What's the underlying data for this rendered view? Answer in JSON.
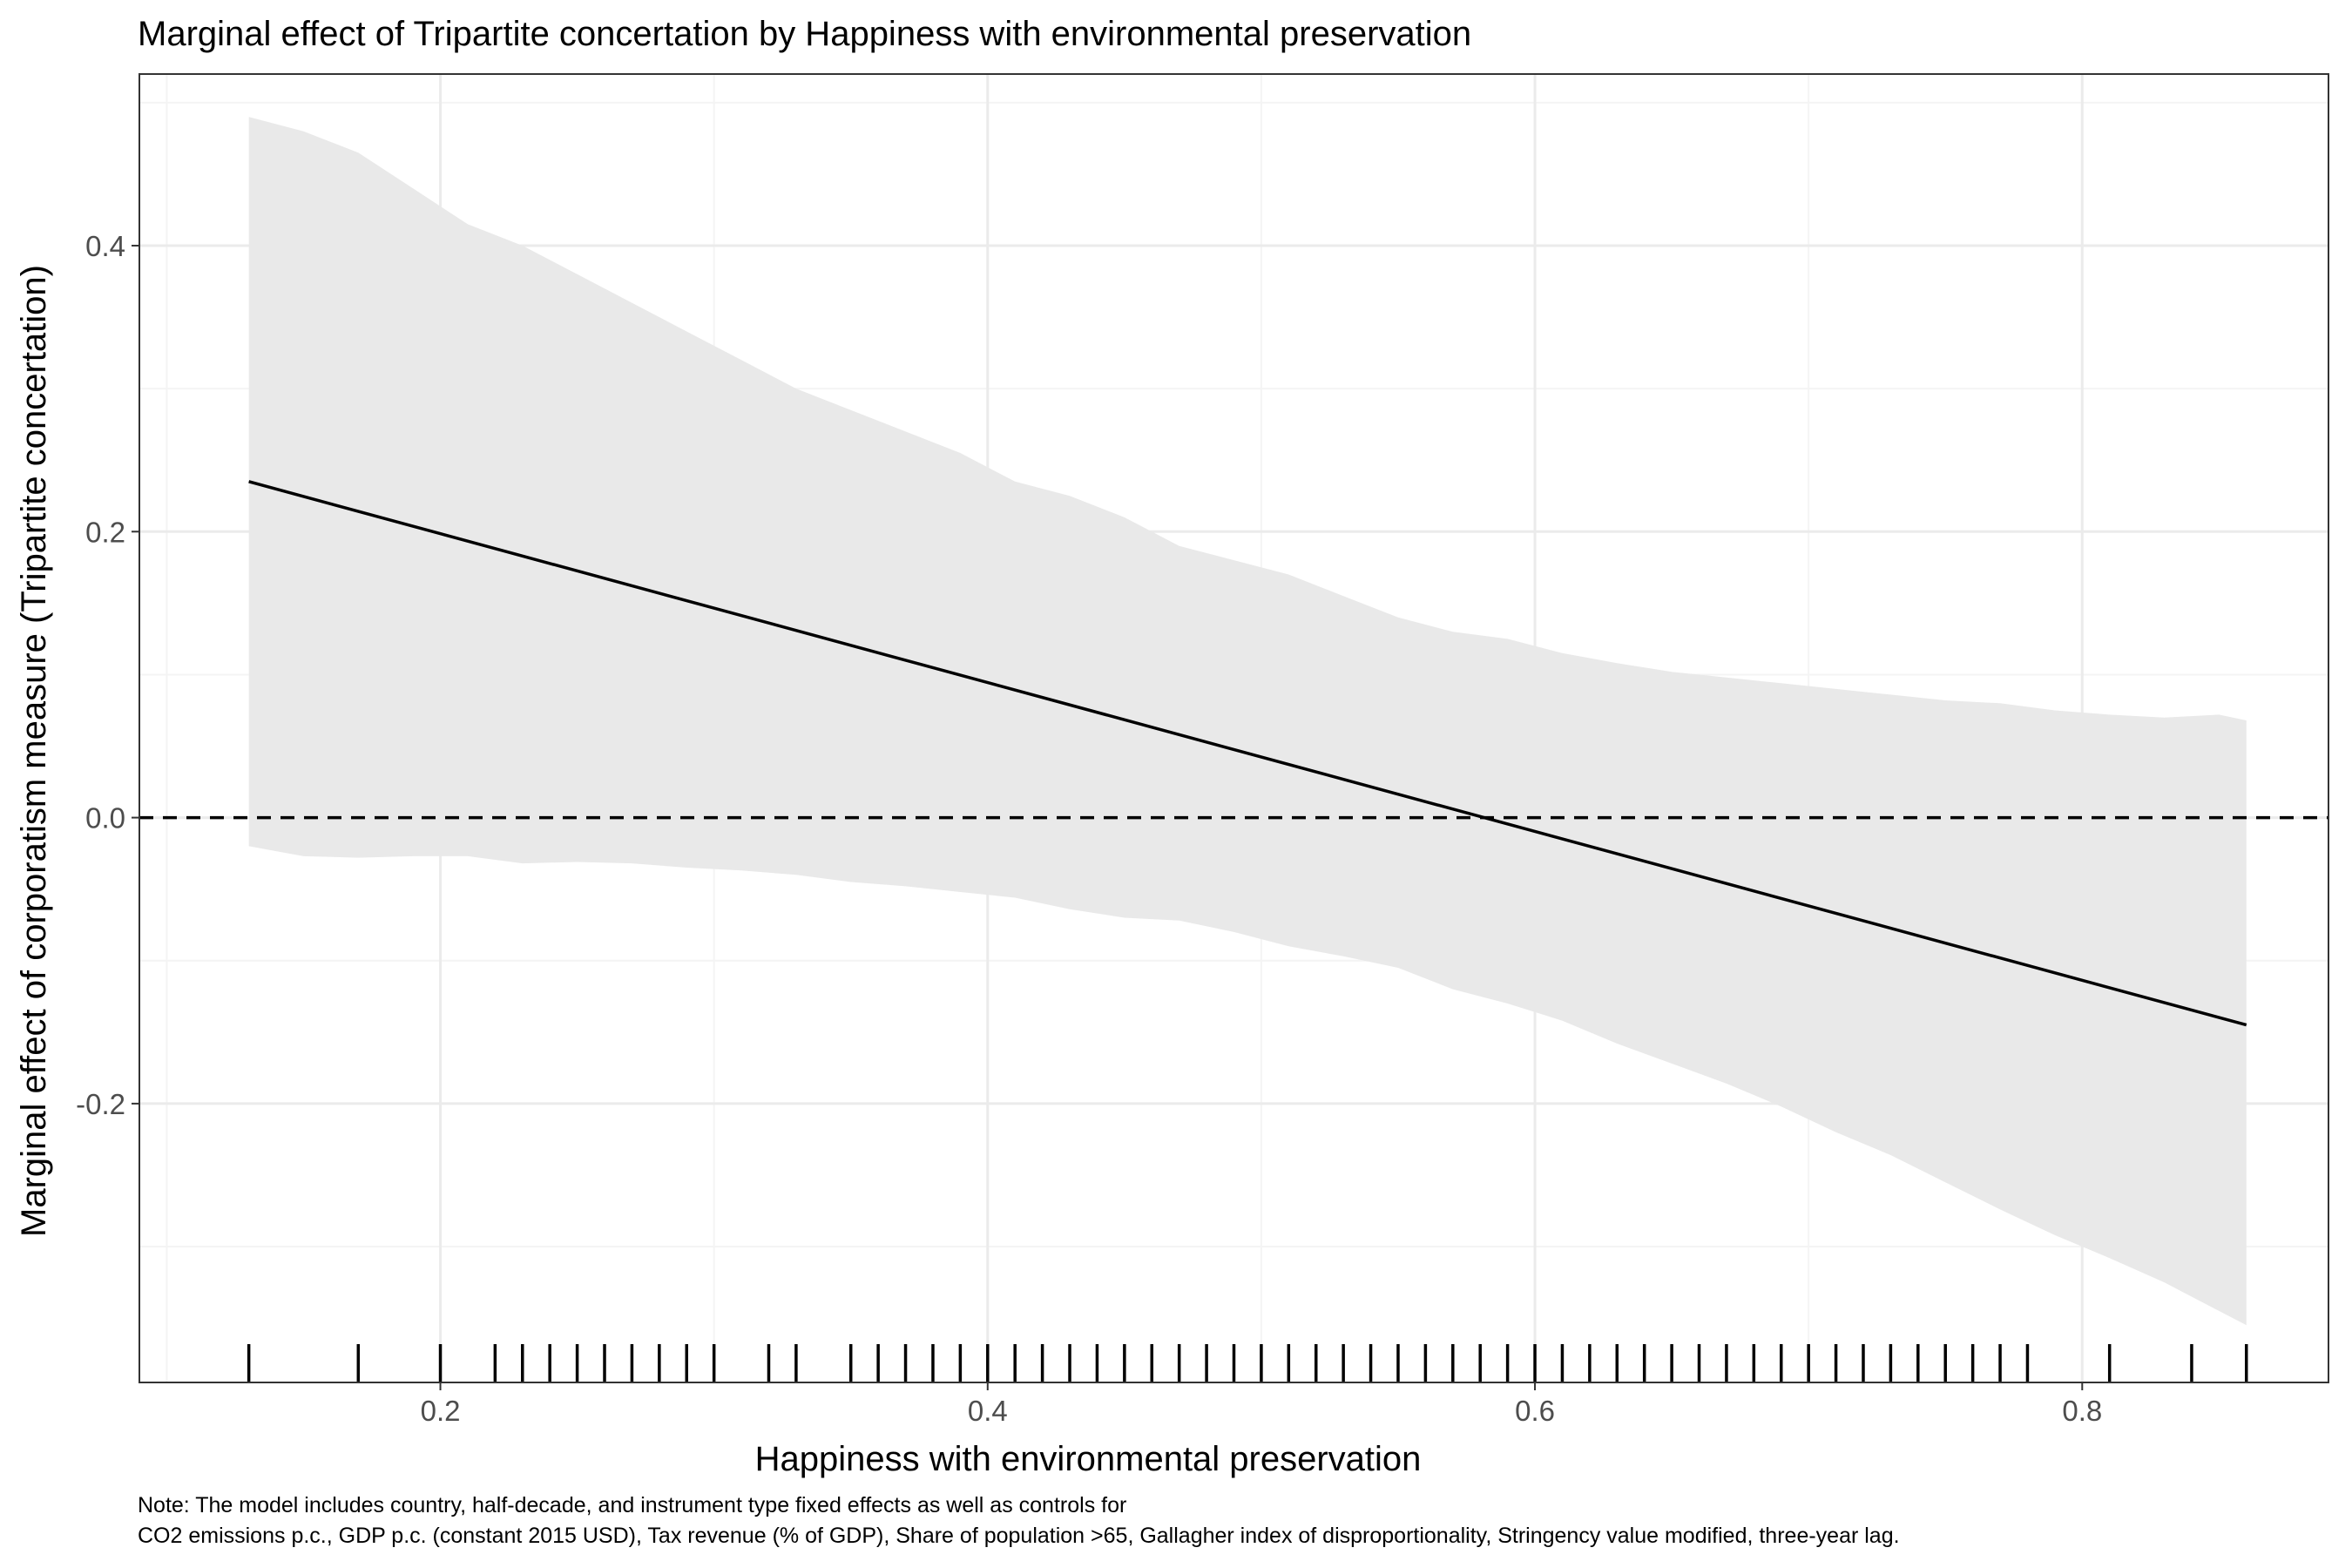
{
  "chart_data": {
    "type": "line",
    "title": "Marginal effect of Tripartite concertation by Happiness with environmental preservation",
    "xlabel": "Happiness with environmental preservation",
    "ylabel": "Marginal effect of corporatism measure (Tripartite concertation)",
    "xlim": [
      0.09,
      0.89
    ],
    "ylim": [
      -0.395,
      0.52
    ],
    "x_ticks": [
      {
        "value": 0.2,
        "label": "0.2"
      },
      {
        "value": 0.4,
        "label": "0.4"
      },
      {
        "value": 0.6,
        "label": "0.6"
      },
      {
        "value": 0.8,
        "label": "0.8"
      }
    ],
    "y_ticks": [
      {
        "value": -0.2,
        "label": "-0.2"
      },
      {
        "value": 0.0,
        "label": "0.0"
      },
      {
        "value": 0.2,
        "label": "0.2"
      },
      {
        "value": 0.4,
        "label": "0.4"
      }
    ],
    "grid": true,
    "reference_line": {
      "y": 0,
      "style": "dashed"
    },
    "line": {
      "name": "Marginal effect",
      "x": [
        0.13,
        0.86
      ],
      "y": [
        0.235,
        -0.145
      ]
    },
    "ribbon": {
      "name": "Confidence interval",
      "x": [
        0.13,
        0.15,
        0.17,
        0.19,
        0.21,
        0.23,
        0.25,
        0.27,
        0.29,
        0.31,
        0.33,
        0.35,
        0.37,
        0.39,
        0.41,
        0.43,
        0.45,
        0.47,
        0.49,
        0.51,
        0.53,
        0.55,
        0.57,
        0.59,
        0.61,
        0.63,
        0.65,
        0.67,
        0.69,
        0.71,
        0.73,
        0.75,
        0.77,
        0.79,
        0.81,
        0.83,
        0.85,
        0.86
      ],
      "upper": [
        0.49,
        0.48,
        0.465,
        0.44,
        0.415,
        0.4,
        0.38,
        0.36,
        0.34,
        0.32,
        0.3,
        0.285,
        0.27,
        0.255,
        0.235,
        0.225,
        0.21,
        0.19,
        0.18,
        0.17,
        0.155,
        0.14,
        0.13,
        0.125,
        0.115,
        0.108,
        0.102,
        0.098,
        0.094,
        0.09,
        0.086,
        0.082,
        0.08,
        0.075,
        0.072,
        0.07,
        0.072,
        0.068
      ],
      "lower": [
        -0.02,
        -0.027,
        -0.028,
        -0.027,
        -0.027,
        -0.032,
        -0.031,
        -0.032,
        -0.035,
        -0.037,
        -0.04,
        -0.045,
        -0.048,
        -0.052,
        -0.056,
        -0.064,
        -0.07,
        -0.072,
        -0.08,
        -0.09,
        -0.097,
        -0.105,
        -0.12,
        -0.13,
        -0.142,
        -0.158,
        -0.172,
        -0.186,
        -0.202,
        -0.22,
        -0.236,
        -0.255,
        -0.274,
        -0.292,
        -0.308,
        -0.325,
        -0.345,
        -0.355
      ]
    },
    "rug_x": [
      0.13,
      0.17,
      0.2,
      0.22,
      0.23,
      0.24,
      0.25,
      0.26,
      0.27,
      0.28,
      0.29,
      0.3,
      0.32,
      0.33,
      0.35,
      0.36,
      0.37,
      0.38,
      0.39,
      0.4,
      0.41,
      0.42,
      0.43,
      0.44,
      0.45,
      0.46,
      0.47,
      0.48,
      0.49,
      0.5,
      0.51,
      0.52,
      0.53,
      0.54,
      0.55,
      0.56,
      0.57,
      0.58,
      0.59,
      0.6,
      0.61,
      0.62,
      0.63,
      0.64,
      0.65,
      0.66,
      0.67,
      0.68,
      0.69,
      0.7,
      0.71,
      0.72,
      0.73,
      0.74,
      0.75,
      0.76,
      0.77,
      0.78,
      0.81,
      0.84,
      0.86
    ]
  },
  "note": {
    "line1": "Note: The model includes country, half-decade, and instrument type fixed effects as well as controls for",
    "line2": "CO2 emissions p.c., GDP p.c. (constant 2015 USD), Tax revenue (% of GDP), Share of population >65, Gallagher index of disproportionality, Stringency value modified, three-year lag."
  },
  "colors": {
    "ribbon": "#e9e9e9",
    "line": "#000000",
    "grid_major": "#ebebeb",
    "grid_minor": "#f4f4f4",
    "panel_border": "#333333",
    "tick_label": "#4d4d4d"
  }
}
